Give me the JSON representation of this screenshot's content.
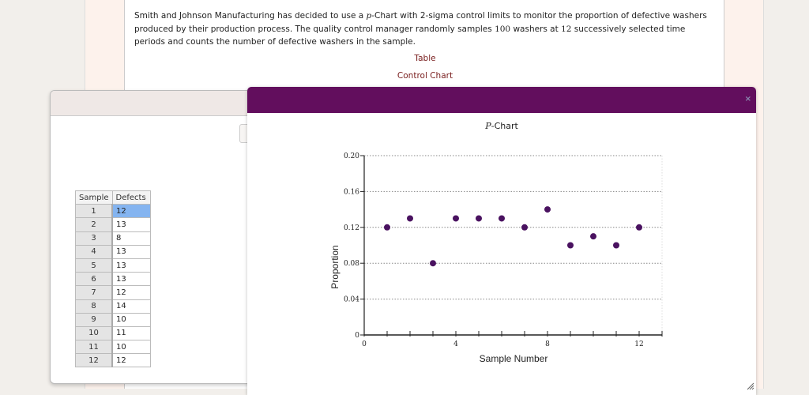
{
  "problem": {
    "text_before": "Smith and Johnson Manufacturing has decided to use a ",
    "p_symbol": "p",
    "text_mid1": "-Chart with 2-sigma control limits to monitor the proportion of defective washers produced by their production process. The quality control manager randomly samples ",
    "sample_size": "100",
    "text_mid2": " washers at ",
    "periods": "12",
    "text_end": " successively selected time periods and counts the number of defective washers in the sample."
  },
  "links": {
    "table": "Table",
    "control_chart": "Control Chart"
  },
  "table": {
    "headers": [
      "Sample",
      "Defects"
    ],
    "rows": [
      [
        "1",
        "12"
      ],
      [
        "2",
        "13"
      ],
      [
        "3",
        "8"
      ],
      [
        "4",
        "13"
      ],
      [
        "5",
        "13"
      ],
      [
        "6",
        "13"
      ],
      [
        "7",
        "12"
      ],
      [
        "8",
        "14"
      ],
      [
        "9",
        "10"
      ],
      [
        "10",
        "11"
      ],
      [
        "11",
        "10"
      ],
      [
        "12",
        "12"
      ]
    ],
    "selected_row": 0
  },
  "chart_window": {
    "close_label": "×",
    "title_italic": "P",
    "title_rest": "-Chart",
    "header_color": "#620e5d",
    "point_color": "#4a1260"
  },
  "chart_data": {
    "type": "scatter",
    "title": "P-Chart",
    "xlabel": "Sample Number",
    "ylabel": "Proportion",
    "x": [
      1,
      2,
      3,
      4,
      5,
      6,
      7,
      8,
      9,
      10,
      11,
      12
    ],
    "y": [
      0.12,
      0.13,
      0.08,
      0.13,
      0.13,
      0.13,
      0.12,
      0.14,
      0.1,
      0.11,
      0.1,
      0.12
    ],
    "xlim": [
      0,
      13
    ],
    "ylim": [
      0,
      0.2
    ],
    "xticks": [
      0,
      4,
      8,
      12
    ],
    "yticks": [
      "0",
      "0.04",
      "0.08",
      "0.12",
      "0.16",
      "0.20"
    ],
    "grid": "horizontal dotted"
  }
}
